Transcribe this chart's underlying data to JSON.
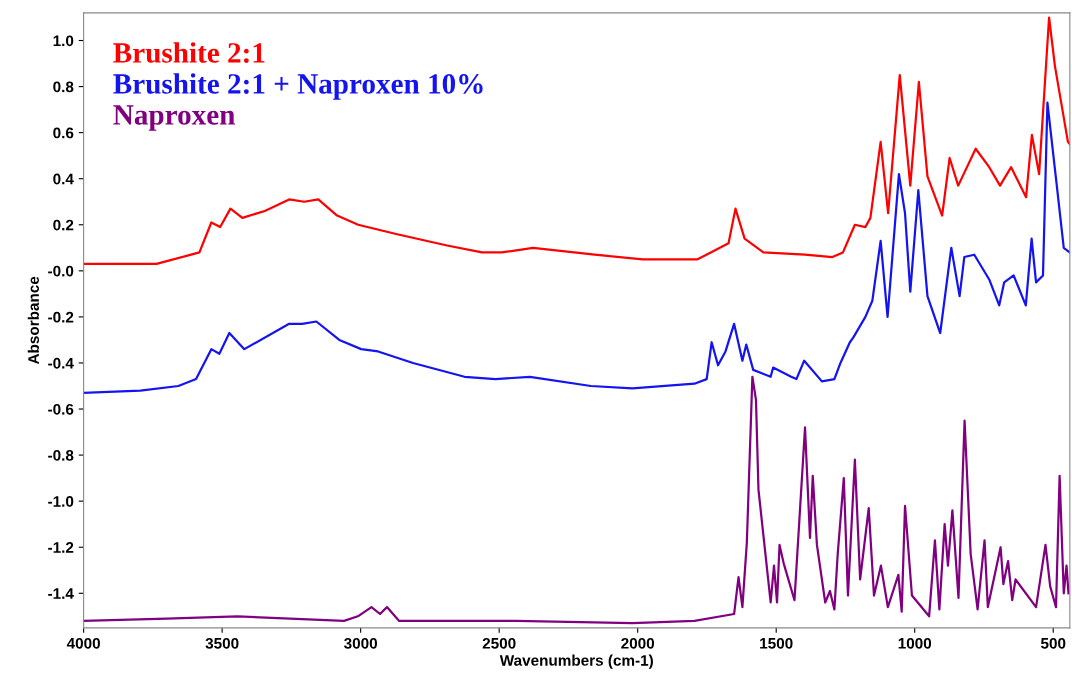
{
  "chart_data": {
    "type": "line",
    "xlabel": "Wavenumbers (cm-1)",
    "ylabel": "Absorbance",
    "xlim": [
      4000,
      440
    ],
    "ylim": [
      -1.55,
      1.12
    ],
    "xticks": [
      4000,
      3500,
      3000,
      2500,
      2000,
      1500,
      1000,
      500
    ],
    "yticks": [
      {
        "value": 1.0,
        "label": "1.0"
      },
      {
        "value": 0.8,
        "label": "0.8"
      },
      {
        "value": 0.6,
        "label": "0.6"
      },
      {
        "value": 0.4,
        "label": "0.4"
      },
      {
        "value": 0.2,
        "label": "0.2"
      },
      {
        "value": 0,
        "label": "-0.0"
      },
      {
        "value": -0.2,
        "label": "-0.2"
      },
      {
        "value": -0.4,
        "label": "-0.4"
      },
      {
        "value": -0.6,
        "label": "-0.6"
      },
      {
        "value": -0.8,
        "label": "-0.8"
      },
      {
        "value": -1.0,
        "label": "-1.0"
      },
      {
        "value": -1.2,
        "label": "-1.2"
      },
      {
        "value": -1.4,
        "label": "-1.4"
      }
    ],
    "legend": "top left",
    "grid": false,
    "marker": "none",
    "line_style": "solid",
    "series": [
      {
        "name": "Brushite 2:1",
        "color": "#ff0000",
        "x": [
          4000,
          3737,
          3582,
          3539,
          3507,
          3470,
          3427,
          3346,
          3258,
          3204,
          3153,
          3085,
          3009,
          2872,
          2688,
          2562,
          2490,
          2378,
          2155,
          1982,
          1784,
          1719,
          1672,
          1647,
          1614,
          1546,
          1396,
          1297,
          1259,
          1216,
          1178,
          1160,
          1123,
          1096,
          1054,
          1016,
          985,
          954,
          901,
          874,
          843,
          780,
          731,
          692,
          652,
          598,
          577,
          551,
          515,
          494,
          447,
          440
        ],
        "values": [
          0.03,
          0.03,
          0.08,
          0.21,
          0.19,
          0.27,
          0.23,
          0.26,
          0.31,
          0.3,
          0.31,
          0.24,
          0.2,
          0.16,
          0.11,
          0.08,
          0.08,
          0.1,
          0.07,
          0.05,
          0.05,
          0.09,
          0.12,
          0.27,
          0.14,
          0.08,
          0.07,
          0.06,
          0.08,
          0.2,
          0.19,
          0.23,
          0.56,
          0.25,
          0.85,
          0.37,
          0.82,
          0.41,
          0.24,
          0.49,
          0.37,
          0.53,
          0.45,
          0.37,
          0.45,
          0.32,
          0.59,
          0.42,
          1.1,
          0.89,
          0.56,
          0.55
        ]
      },
      {
        "name": "Brushite 2:1 + Naproxen 10%",
        "color": "#1414f0",
        "x": [
          4000,
          3795,
          3658,
          3594,
          3539,
          3510,
          3474,
          3420,
          3258,
          3211,
          3160,
          3077,
          2998,
          2937,
          2811,
          2625,
          2513,
          2389,
          2169,
          2019,
          1795,
          1751,
          1733,
          1710,
          1683,
          1652,
          1622,
          1608,
          1583,
          1520,
          1511,
          1446,
          1427,
          1399,
          1335,
          1290,
          1268,
          1234,
          1222,
          1178,
          1153,
          1123,
          1098,
          1057,
          1035,
          1016,
          987,
          954,
          908,
          868,
          838,
          821,
          785,
          730,
          695,
          677,
          643,
          599,
          578,
          562,
          537,
          521,
          490,
          462,
          440
        ],
        "values": [
          -0.53,
          -0.52,
          -0.5,
          -0.47,
          -0.34,
          -0.36,
          -0.27,
          -0.34,
          -0.23,
          -0.23,
          -0.22,
          -0.3,
          -0.34,
          -0.35,
          -0.4,
          -0.46,
          -0.47,
          -0.46,
          -0.5,
          -0.51,
          -0.49,
          -0.47,
          -0.31,
          -0.41,
          -0.35,
          -0.23,
          -0.39,
          -0.32,
          -0.43,
          -0.46,
          -0.42,
          -0.46,
          -0.47,
          -0.39,
          -0.48,
          -0.47,
          -0.4,
          -0.31,
          -0.29,
          -0.2,
          -0.13,
          0.13,
          -0.2,
          0.42,
          0.25,
          -0.09,
          0.35,
          -0.11,
          -0.27,
          0.1,
          -0.11,
          0.06,
          0.07,
          -0.04,
          -0.15,
          -0.05,
          -0.02,
          -0.15,
          0.14,
          -0.05,
          -0.02,
          0.73,
          0.4,
          0.1,
          0.08
        ]
      },
      {
        "name": "Naproxen",
        "color": "#800080",
        "x": [
          4000,
          3700,
          3445,
          3060,
          3010,
          2961,
          2930,
          2905,
          2861,
          2440,
          2019,
          1795,
          1652,
          1636,
          1622,
          1606,
          1586,
          1573,
          1564,
          1520,
          1508,
          1497,
          1488,
          1473,
          1434,
          1396,
          1378,
          1368,
          1353,
          1323,
          1306,
          1290,
          1278,
          1256,
          1241,
          1216,
          1197,
          1166,
          1147,
          1122,
          1097,
          1059,
          1047,
          1035,
          1010,
          948,
          927,
          911,
          892,
          880,
          864,
          842,
          820,
          798,
          773,
          748,
          736,
          690,
          680,
          663,
          648,
          636,
          562,
          528,
          511,
          490,
          477,
          462,
          452,
          445
        ],
        "values": [
          -1.52,
          -1.51,
          -1.5,
          -1.52,
          -1.5,
          -1.46,
          -1.49,
          -1.46,
          -1.52,
          -1.52,
          -1.53,
          -1.52,
          -1.49,
          -1.33,
          -1.46,
          -1.18,
          -0.46,
          -0.56,
          -0.95,
          -1.44,
          -1.28,
          -1.44,
          -1.19,
          -1.27,
          -1.43,
          -0.68,
          -1.16,
          -0.89,
          -1.19,
          -1.44,
          -1.39,
          -1.47,
          -1.23,
          -0.9,
          -1.41,
          -0.82,
          -1.34,
          -1.03,
          -1.41,
          -1.28,
          -1.46,
          -1.32,
          -1.48,
          -1.02,
          -1.41,
          -1.5,
          -1.17,
          -1.47,
          -1.1,
          -1.28,
          -1.04,
          -1.42,
          -0.65,
          -1.23,
          -1.47,
          -1.17,
          -1.46,
          -1.2,
          -1.36,
          -1.26,
          -1.43,
          -1.34,
          -1.46,
          -1.19,
          -1.37,
          -1.46,
          -0.89,
          -1.4,
          -1.28,
          -1.4
        ]
      }
    ]
  }
}
